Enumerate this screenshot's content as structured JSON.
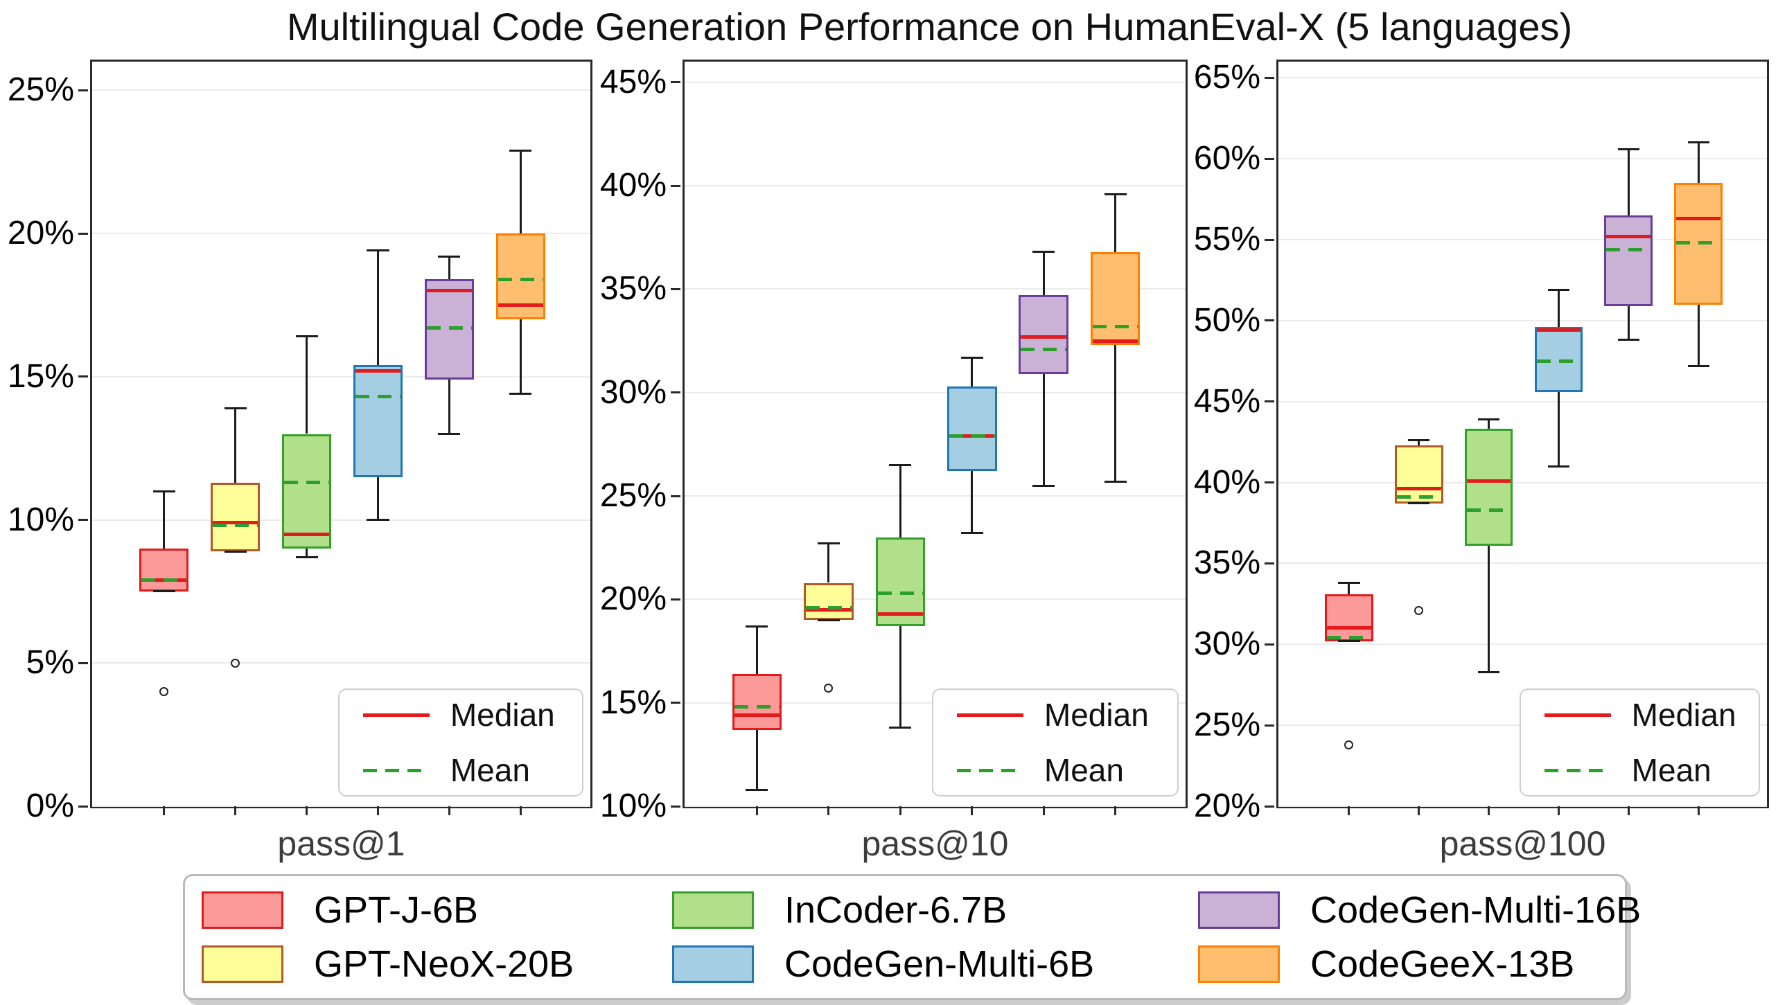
{
  "chart_data": {
    "type": "boxplot",
    "title": "Multilingual Code Generation Performance on HumanEval-X (5 languages)",
    "grid": "horizontal-only",
    "median_color": "#e41a1c",
    "mean_color": "#2ca02c",
    "axis_color": "#2a2a2a",
    "inner_legend": {
      "median_label": "Median",
      "mean_label": "Mean",
      "position": "lower right"
    },
    "models": [
      {
        "name": "GPT-J-6B",
        "fill": "#fb9a99",
        "edge": "#e31a1c"
      },
      {
        "name": "GPT-NeoX-20B",
        "fill": "#ffff99",
        "edge": "#b15928"
      },
      {
        "name": "InCoder-6.7B",
        "fill": "#b2df8a",
        "edge": "#33a02c"
      },
      {
        "name": "CodeGen-Multi-6B",
        "fill": "#a6cee3",
        "edge": "#1f78b4"
      },
      {
        "name": "CodeGen-Multi-16B",
        "fill": "#cab2d6",
        "edge": "#6a3d9a"
      },
      {
        "name": "CodeGeeX-13B",
        "fill": "#fdbf6f",
        "edge": "#ff7f00"
      }
    ],
    "legend_order": [
      "GPT-J-6B",
      "InCoder-6.7B",
      "CodeGen-Multi-16B",
      "GPT-NeoX-20B",
      "CodeGen-Multi-6B",
      "CodeGeeX-13B"
    ],
    "panels": [
      {
        "xlabel": "pass@1",
        "ylim": [
          0,
          26
        ],
        "yticks": [
          0,
          5,
          10,
          15,
          20,
          25
        ],
        "ytick_suffix": "%",
        "boxes": [
          {
            "model": "GPT-J-6B",
            "whislo": 7.5,
            "q1": 7.5,
            "med": 7.9,
            "mean": 7.9,
            "q3": 9.0,
            "whishi": 11.0,
            "fliers": [
              4.0
            ]
          },
          {
            "model": "GPT-NeoX-20B",
            "whislo": 8.9,
            "q1": 8.9,
            "med": 9.9,
            "mean": 9.8,
            "q3": 11.3,
            "whishi": 13.9,
            "fliers": [
              5.0
            ]
          },
          {
            "model": "InCoder-6.7B",
            "whislo": 8.7,
            "q1": 9.0,
            "med": 9.5,
            "mean": 11.3,
            "q3": 13.0,
            "whishi": 16.4,
            "fliers": []
          },
          {
            "model": "CodeGen-Multi-6B",
            "whislo": 10.0,
            "q1": 11.5,
            "med": 15.2,
            "mean": 14.3,
            "q3": 15.4,
            "whishi": 19.4,
            "fliers": []
          },
          {
            "model": "CodeGen-Multi-16B",
            "whislo": 13.0,
            "q1": 14.9,
            "med": 18.0,
            "mean": 16.7,
            "q3": 18.4,
            "whishi": 19.2,
            "fliers": []
          },
          {
            "model": "CodeGeeX-13B",
            "whislo": 14.4,
            "q1": 17.0,
            "med": 17.5,
            "mean": 18.4,
            "q3": 20.0,
            "whishi": 22.9,
            "fliers": []
          }
        ]
      },
      {
        "xlabel": "pass@10",
        "ylim": [
          10,
          46
        ],
        "yticks": [
          10,
          15,
          20,
          25,
          30,
          35,
          40,
          45
        ],
        "ytick_suffix": "%",
        "boxes": [
          {
            "model": "GPT-J-6B",
            "whislo": 10.8,
            "q1": 13.7,
            "med": 14.4,
            "mean": 14.8,
            "q3": 16.4,
            "whishi": 18.7,
            "fliers": []
          },
          {
            "model": "GPT-NeoX-20B",
            "whislo": 19.0,
            "q1": 19.0,
            "med": 19.5,
            "mean": 19.6,
            "q3": 20.8,
            "whishi": 22.7,
            "fliers": [
              15.7
            ]
          },
          {
            "model": "InCoder-6.7B",
            "whislo": 13.8,
            "q1": 18.7,
            "med": 19.3,
            "mean": 20.3,
            "q3": 23.0,
            "whishi": 26.5,
            "fliers": []
          },
          {
            "model": "CodeGen-Multi-6B",
            "whislo": 23.2,
            "q1": 26.2,
            "med": 27.9,
            "mean": 27.9,
            "q3": 30.3,
            "whishi": 31.7,
            "fliers": []
          },
          {
            "model": "CodeGen-Multi-16B",
            "whislo": 25.5,
            "q1": 30.9,
            "med": 32.7,
            "mean": 32.1,
            "q3": 34.7,
            "whishi": 36.8,
            "fliers": []
          },
          {
            "model": "CodeGeeX-13B",
            "whislo": 25.7,
            "q1": 32.3,
            "med": 32.5,
            "mean": 33.2,
            "q3": 36.8,
            "whishi": 39.6,
            "fliers": []
          }
        ]
      },
      {
        "xlabel": "pass@100",
        "ylim": [
          20,
          66
        ],
        "yticks": [
          20,
          25,
          30,
          35,
          40,
          45,
          50,
          55,
          60,
          65
        ],
        "ytick_suffix": "%",
        "boxes": [
          {
            "model": "GPT-J-6B",
            "whislo": 30.2,
            "q1": 30.2,
            "med": 31.0,
            "mean": 30.4,
            "q3": 33.1,
            "whishi": 33.8,
            "fliers": [
              23.8
            ]
          },
          {
            "model": "GPT-NeoX-20B",
            "whislo": 38.7,
            "q1": 38.7,
            "med": 39.6,
            "mean": 39.1,
            "q3": 42.3,
            "whishi": 42.6,
            "fliers": [
              32.1
            ]
          },
          {
            "model": "InCoder-6.7B",
            "whislo": 28.3,
            "q1": 36.1,
            "med": 40.1,
            "mean": 38.3,
            "q3": 43.3,
            "whishi": 43.9,
            "fliers": []
          },
          {
            "model": "CodeGen-Multi-6B",
            "whislo": 41.0,
            "q1": 45.6,
            "med": 49.4,
            "mean": 47.5,
            "q3": 49.6,
            "whishi": 51.9,
            "fliers": []
          },
          {
            "model": "CodeGen-Multi-16B",
            "whislo": 48.8,
            "q1": 50.9,
            "med": 55.2,
            "mean": 54.4,
            "q3": 56.5,
            "whishi": 60.6,
            "fliers": []
          },
          {
            "model": "CodeGeeX-13B",
            "whislo": 47.2,
            "q1": 51.0,
            "med": 56.3,
            "mean": 54.8,
            "q3": 58.5,
            "whishi": 61.0,
            "fliers": []
          }
        ]
      }
    ]
  }
}
